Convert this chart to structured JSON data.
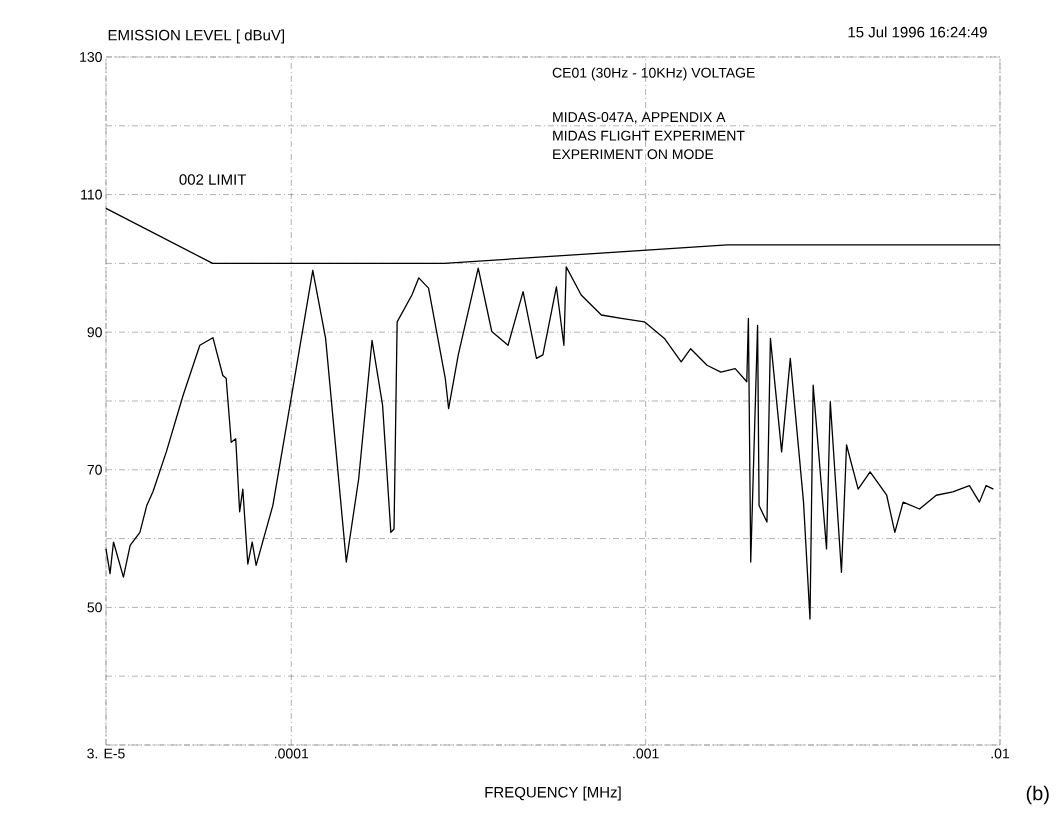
{
  "chart_data": {
    "type": "line",
    "xlabel": "FREQUENCY [MHz]",
    "ylabel": "EMISSION LEVEL [ dBuV]",
    "annotations": [
      "15 Jul 1996   16:24:49",
      "CE01 (30Hz - 10KHz) VOLTAGE",
      "MIDAS-047A, APPENDIX A",
      "MIDAS FLIGHT EXPERIMENT",
      "EXPERIMENT ON MODE",
      "(b)"
    ],
    "log": "x",
    "xlim": [
      3e-05,
      0.01
    ],
    "ylim": [
      30,
      130
    ],
    "xticks": [
      {
        "value": 3e-05,
        "label": "3. E-5"
      },
      {
        "value": 0.0001,
        "label": ".0001"
      },
      {
        "value": 0.001,
        "label": ".001"
      },
      {
        "value": 0.01,
        "label": ".01"
      }
    ],
    "yticks": [
      {
        "value": 30,
        "label": null
      },
      {
        "value": 40,
        "label": null
      },
      50,
      {
        "value": 60,
        "label": null
      },
      70,
      {
        "value": 80,
        "label": null
      },
      90,
      {
        "value": 100,
        "label": null
      },
      110,
      {
        "value": 120,
        "label": null
      },
      130
    ],
    "grid": true,
    "legend": false,
    "marker": "none",
    "line_style": "solid",
    "series": [
      {
        "color": "#000000",
        "x": [
          3e-05,
          3.08e-05,
          3.15e-05,
          3.36e-05,
          3.51e-05,
          3.74e-05,
          3.91e-05,
          4.07e-05,
          4.44e-05,
          4.95e-05,
          5.52e-05,
          6.01e-05,
          6.41e-05,
          6.55e-05,
          6.77e-05,
          6.97e-05,
          7.15e-05,
          7.3e-05,
          7.54e-05,
          7.76e-05,
          7.96e-05,
          8.87e-05,
          0.000101,
          0.000115,
          0.000125,
          0.000143,
          0.000155,
          0.000169,
          0.000181,
          0.000191,
          0.000195,
          0.000199,
          0.000219,
          0.000229,
          0.000244,
          0.000272,
          0.000278,
          0.000296,
          0.000337,
          0.000368,
          0.000409,
          0.000451,
          0.000492,
          0.000513,
          0.00056,
          0.000588,
          0.000597,
          0.000658,
          0.00075,
          0.000854,
          0.000992,
          0.00113,
          0.00126,
          0.00134,
          0.00149,
          0.00163,
          0.00179,
          0.00193,
          0.00195,
          0.00198,
          0.00207,
          0.00209,
          0.0022,
          0.00225,
          0.00242,
          0.00256,
          0.00279,
          0.00291,
          0.00297,
          0.00324,
          0.00332,
          0.00357,
          0.00369,
          0.00398,
          0.0043,
          0.00479,
          0.00505,
          0.00533,
          0.00593,
          0.00661,
          0.00736,
          0.0082,
          0.00875,
          0.00914,
          0.00958
        ],
        "values": [
          58.5,
          54.9,
          59.5,
          54.4,
          59.0,
          60.9,
          64.8,
          66.8,
          72.6,
          80.8,
          88.1,
          89.2,
          83.7,
          83.3,
          74.0,
          74.5,
          63.9,
          67.2,
          56.3,
          59.5,
          56.1,
          64.8,
          81.8,
          99.0,
          89.1,
          56.6,
          68.7,
          88.8,
          79.4,
          60.9,
          61.4,
          91.5,
          95.4,
          97.9,
          96.4,
          83.3,
          78.9,
          86.7,
          99.3,
          90.1,
          88.1,
          95.9,
          86.2,
          86.7,
          96.6,
          88.1,
          99.5,
          95.4,
          92.5,
          92.0,
          91.5,
          89.1,
          85.7,
          87.6,
          85.2,
          84.2,
          84.7,
          82.8,
          92.0,
          56.6,
          91.0,
          64.8,
          62.4,
          89.1,
          72.6,
          86.2,
          65.3,
          48.3,
          82.3,
          58.5,
          79.9,
          55.1,
          73.6,
          67.2,
          69.7,
          66.3,
          60.9,
          65.3,
          64.3,
          66.3,
          66.8,
          67.7,
          65.3,
          67.7,
          67.2
        ]
      },
      {
        "name": "002 LIMIT",
        "color": "#000000",
        "x": [
          3e-05,
          6e-05,
          0.00027,
          0.0017,
          0.01
        ],
        "values": [
          108,
          100,
          100,
          102.7,
          102.7
        ]
      }
    ]
  }
}
